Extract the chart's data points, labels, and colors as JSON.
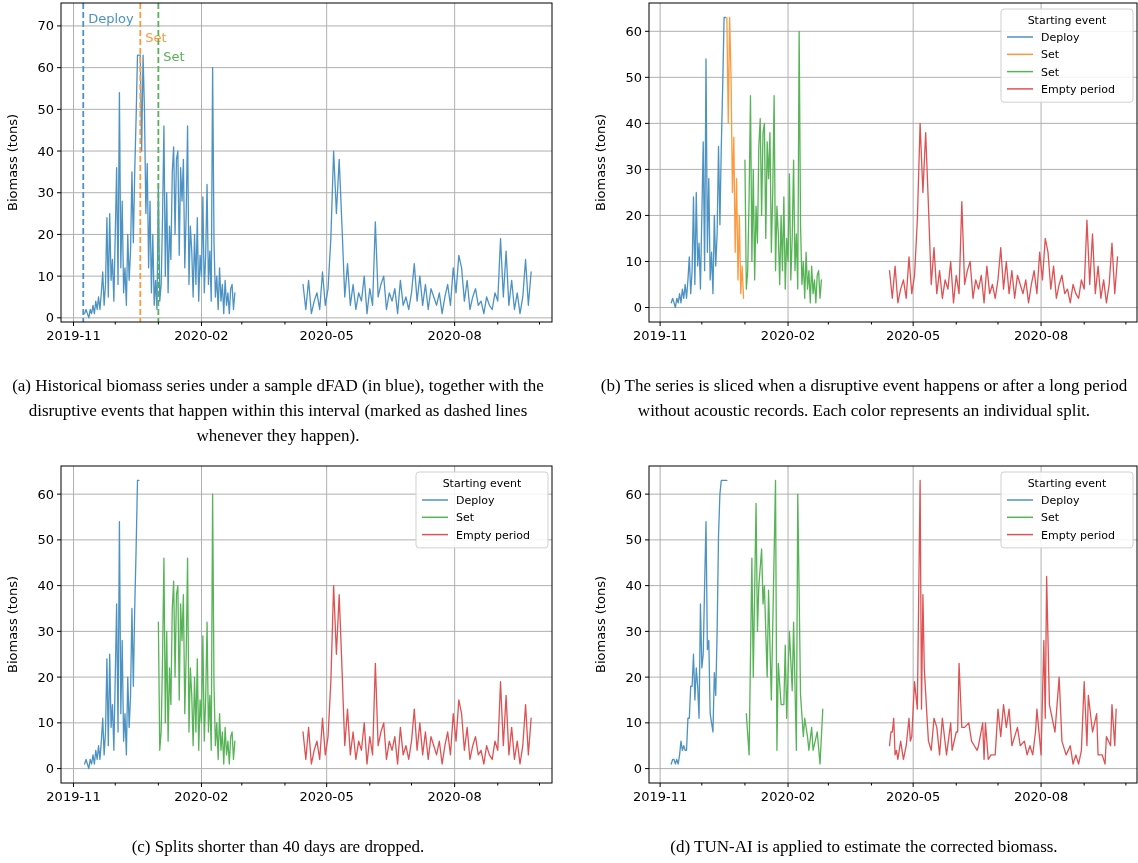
{
  "chart_data": [
    {
      "type": "line",
      "ylabel": "Biomass (tons)",
      "xlim": [
        "2019-10-23",
        "2020-10-10"
      ],
      "ylim": [
        -1,
        75.5
      ],
      "xticks": [
        "2019-11",
        {
          "value": "2019-12",
          "label": null
        },
        {
          "value": "2020-01",
          "label": null
        },
        "2020-02",
        {
          "value": "2020-03",
          "label": null
        },
        {
          "value": "2020-04",
          "label": null
        },
        "2020-05",
        {
          "value": "2020-06",
          "label": null
        },
        {
          "value": "2020-07",
          "label": null
        },
        "2020-08",
        {
          "value": "2020-09",
          "label": null
        },
        {
          "value": "2020-10",
          "label": null
        }
      ],
      "yticks": [
        0,
        10,
        20,
        30,
        40,
        50,
        60,
        70
      ],
      "grid": true,
      "x": [
        "2019-11-09",
        "2019-11-10",
        "2019-11-11",
        "2019-11-12",
        "2019-11-13",
        "2019-11-14",
        "2019-11-15",
        "2019-11-16",
        "2019-11-17",
        "2019-11-18",
        "2019-11-19",
        "2019-11-20",
        "2019-11-21",
        "2019-11-22",
        "2019-11-23",
        "2019-11-24",
        "2019-11-25",
        "2019-11-26",
        "2019-11-27",
        "2019-11-28",
        "2019-11-29",
        "2019-11-30",
        "2019-12-01",
        "2019-12-02",
        "2019-12-03",
        "2019-12-04",
        "2019-12-05",
        "2019-12-06",
        "2019-12-07",
        "2019-12-08",
        "2019-12-09",
        "2019-12-10",
        "2019-12-11",
        "2019-12-12",
        "2019-12-13",
        "2019-12-14",
        "2019-12-15",
        "2019-12-16",
        "2019-12-17",
        "2019-12-18",
        "2019-12-19",
        "2019-12-20",
        "2019-12-21",
        "2019-12-22",
        "2019-12-23",
        "2019-12-24",
        "2019-12-25",
        "2019-12-26",
        "2019-12-27",
        "2019-12-28",
        "2019-12-29",
        "2019-12-30",
        "2019-12-31",
        "2020-01-01",
        "2020-01-02",
        "2020-01-03",
        "2020-01-04",
        "2020-01-05",
        "2020-01-06",
        "2020-01-07",
        "2020-01-08",
        "2020-01-09",
        "2020-01-10",
        "2020-01-11",
        "2020-01-12",
        "2020-01-13",
        "2020-01-14",
        "2020-01-15",
        "2020-01-16",
        "2020-01-17",
        "2020-01-18",
        "2020-01-19",
        "2020-01-20",
        "2020-01-21",
        "2020-01-22",
        "2020-01-23",
        "2020-01-24",
        "2020-01-25",
        "2020-01-26",
        "2020-01-27",
        "2020-01-28",
        "2020-01-29",
        "2020-01-30",
        "2020-01-31",
        "2020-02-01",
        "2020-02-02",
        "2020-02-03",
        "2020-02-04",
        "2020-02-05",
        "2020-02-06",
        "2020-02-07",
        "2020-02-08",
        "2020-02-09",
        "2020-02-10",
        "2020-02-11",
        "2020-02-12",
        "2020-02-13",
        "2020-02-14",
        "2020-02-15",
        "2020-02-16",
        "2020-02-17",
        "2020-02-18",
        "2020-02-19",
        "2020-02-20",
        "2020-02-21",
        "2020-02-22",
        "2020-02-23",
        "2020-02-24",
        "2020-02-25",
        "2020-03-20",
        "2020-04-14",
        "2020-04-16",
        "2020-04-18",
        "2020-04-20",
        "2020-04-22",
        "2020-04-24",
        "2020-04-26",
        "2020-04-28",
        "2020-04-30",
        "2020-05-02",
        "2020-05-04",
        "2020-05-06",
        "2020-05-08",
        "2020-05-10",
        "2020-05-12",
        "2020-05-14",
        "2020-05-16",
        "2020-05-18",
        "2020-05-20",
        "2020-05-22",
        "2020-05-24",
        "2020-05-26",
        "2020-05-28",
        "2020-05-30",
        "2020-06-01",
        "2020-06-03",
        "2020-06-05",
        "2020-06-07",
        "2020-06-09",
        "2020-06-11",
        "2020-06-13",
        "2020-06-15",
        "2020-06-17",
        "2020-06-19",
        "2020-06-21",
        "2020-06-23",
        "2020-06-25",
        "2020-06-27",
        "2020-06-29",
        "2020-07-01",
        "2020-07-03",
        "2020-07-05",
        "2020-07-07",
        "2020-07-09",
        "2020-07-11",
        "2020-07-13",
        "2020-07-15",
        "2020-07-17",
        "2020-07-19",
        "2020-07-21",
        "2020-07-23",
        "2020-07-25",
        "2020-07-27",
        "2020-07-29",
        "2020-07-31",
        "2020-08-02",
        "2020-08-04",
        "2020-08-06",
        "2020-08-08",
        "2020-08-10",
        "2020-08-12",
        "2020-08-14",
        "2020-08-16",
        "2020-08-18",
        "2020-08-20",
        "2020-08-22",
        "2020-08-24",
        "2020-08-26",
        "2020-08-28",
        "2020-08-30",
        "2020-09-01",
        "2020-09-03",
        "2020-09-05",
        "2020-09-07",
        "2020-09-09",
        "2020-09-11",
        "2020-09-13",
        "2020-09-15",
        "2020-09-17",
        "2020-09-19",
        "2020-09-21",
        "2020-09-23",
        "2020-09-25"
      ],
      "series": [
        {
          "color": "#4c92c3",
          "values": [
            1,
            2,
            1,
            0,
            2,
            1,
            3,
            1,
            4,
            2,
            5,
            2,
            6,
            11,
            3,
            8,
            24,
            5,
            25,
            9,
            14,
            4,
            20,
            36,
            8,
            54,
            12,
            28,
            6,
            12,
            3,
            20,
            9,
            16,
            35,
            18,
            35,
            48,
            63,
            63,
            63,
            40,
            63,
            50,
            25,
            37,
            12,
            28,
            6,
            20,
            3,
            9,
            2,
            32,
            4,
            8,
            24,
            46,
            10,
            30,
            6,
            22,
            14,
            35,
            41,
            20,
            38,
            40,
            15,
            36,
            28,
            38,
            12,
            25,
            46,
            8,
            22,
            16,
            5,
            20,
            8,
            24,
            4,
            15,
            10,
            29,
            6,
            15,
            32,
            8,
            16,
            4,
            60,
            18,
            5,
            10,
            2,
            12,
            4,
            8,
            1,
            9,
            3,
            6,
            1,
            7,
            8,
            2,
            6,
            null,
            8,
            2,
            9,
            1,
            4,
            6,
            2,
            11,
            3,
            7,
            19,
            40,
            25,
            38,
            22,
            5,
            13,
            3,
            8,
            2,
            6,
            4,
            10,
            1,
            7,
            3,
            23,
            5,
            8,
            10,
            2,
            6,
            4,
            7,
            1,
            9,
            3,
            5,
            2,
            6,
            13,
            4,
            10,
            3,
            8,
            2,
            7,
            5,
            3,
            6,
            1,
            5,
            8,
            3,
            12,
            6,
            15,
            12,
            4,
            9,
            2,
            5,
            7,
            3,
            4,
            1,
            5,
            3,
            2,
            6,
            4,
            19,
            5,
            16,
            3,
            9,
            2,
            6,
            1,
            5,
            14,
            3,
            11
          ]
        }
      ],
      "ref_lines": [
        {
          "axis": "x",
          "value": "2019-11-08",
          "label": "Deploy",
          "color": "#4c92c3",
          "line_style": "dashed"
        },
        {
          "axis": "x",
          "value": "2019-12-19",
          "label": "Set",
          "color": "#ff993e",
          "line_style": "dashed"
        },
        {
          "axis": "x",
          "value": "2020-01-01",
          "label": "Set",
          "color": "#56b356",
          "line_style": "dashed"
        }
      ],
      "annotations": [
        "(a) Historical biomass series under a sample dFAD (in blue), together with the disruptive events that happen within this interval (marked as dashed lines whenever they happen)."
      ]
    },
    {
      "type": "line",
      "ylabel": "Biomass (tons)",
      "xlim": [
        "2019-10-24",
        "2020-10-09"
      ],
      "ylim": [
        -3.15,
        66.15
      ],
      "xticks": [
        "2019-11",
        {
          "value": "2019-12",
          "label": null
        },
        {
          "value": "2020-01",
          "label": null
        },
        "2020-02",
        {
          "value": "2020-03",
          "label": null
        },
        {
          "value": "2020-04",
          "label": null
        },
        "2020-05",
        {
          "value": "2020-06",
          "label": null
        },
        {
          "value": "2020-07",
          "label": null
        },
        "2020-08",
        {
          "value": "2020-09",
          "label": null
        },
        {
          "value": "2020-10",
          "label": null
        }
      ],
      "yticks": [
        0,
        10,
        20,
        30,
        40,
        50,
        60
      ],
      "grid": true,
      "legend": "top right",
      "legend_title": "Starting event",
      "series": [
        {
          "name": "Deploy",
          "color": "#4c92c3",
          "x": [
            "2019-11-09",
            "2019-11-10",
            "2019-11-11",
            "2019-11-12",
            "2019-11-13",
            "2019-11-14",
            "2019-11-15",
            "2019-11-16",
            "2019-11-17",
            "2019-11-18",
            "2019-11-19",
            "2019-11-20",
            "2019-11-21",
            "2019-11-22",
            "2019-11-23",
            "2019-11-24",
            "2019-11-25",
            "2019-11-26",
            "2019-11-27",
            "2019-11-28",
            "2019-11-29",
            "2019-11-30",
            "2019-12-01",
            "2019-12-02",
            "2019-12-03",
            "2019-12-04",
            "2019-12-05",
            "2019-12-06",
            "2019-12-07",
            "2019-12-08",
            "2019-12-09",
            "2019-12-10",
            "2019-12-11",
            "2019-12-12",
            "2019-12-13",
            "2019-12-14",
            "2019-12-15",
            "2019-12-16",
            "2019-12-17",
            "2019-12-18"
          ],
          "values": [
            1,
            2,
            1,
            0,
            2,
            1,
            3,
            1,
            4,
            2,
            5,
            2,
            6,
            11,
            3,
            8,
            24,
            5,
            25,
            9,
            14,
            4,
            20,
            36,
            8,
            54,
            12,
            28,
            6,
            12,
            3,
            20,
            9,
            16,
            35,
            18,
            35,
            48,
            63,
            63
          ]
        },
        {
          "name": "Set",
          "color": "#ff993e",
          "x": [
            "2019-12-19",
            "2019-12-20",
            "2019-12-21",
            "2019-12-22",
            "2019-12-23",
            "2019-12-24",
            "2019-12-25",
            "2019-12-26",
            "2019-12-27",
            "2019-12-28",
            "2019-12-29",
            "2019-12-30",
            "2019-12-31"
          ],
          "values": [
            63,
            40,
            63,
            50,
            25,
            37,
            12,
            28,
            6,
            20,
            3,
            9,
            2
          ]
        },
        {
          "name": "Set",
          "color": "#56b356",
          "x": [
            "2020-01-01",
            "2020-01-02",
            "2020-01-03",
            "2020-01-04",
            "2020-01-05",
            "2020-01-06",
            "2020-01-07",
            "2020-01-08",
            "2020-01-09",
            "2020-01-10",
            "2020-01-11",
            "2020-01-12",
            "2020-01-13",
            "2020-01-14",
            "2020-01-15",
            "2020-01-16",
            "2020-01-17",
            "2020-01-18",
            "2020-01-19",
            "2020-01-20",
            "2020-01-21",
            "2020-01-22",
            "2020-01-23",
            "2020-01-24",
            "2020-01-25",
            "2020-01-26",
            "2020-01-27",
            "2020-01-28",
            "2020-01-29",
            "2020-01-30",
            "2020-01-31",
            "2020-02-01",
            "2020-02-02",
            "2020-02-03",
            "2020-02-04",
            "2020-02-05",
            "2020-02-06",
            "2020-02-07",
            "2020-02-08",
            "2020-02-09",
            "2020-02-10",
            "2020-02-11",
            "2020-02-12",
            "2020-02-13",
            "2020-02-14",
            "2020-02-15",
            "2020-02-16",
            "2020-02-17",
            "2020-02-18",
            "2020-02-19",
            "2020-02-20",
            "2020-02-21",
            "2020-02-22",
            "2020-02-23",
            "2020-02-24",
            "2020-02-25"
          ],
          "values": [
            32,
            4,
            8,
            24,
            46,
            10,
            30,
            6,
            22,
            14,
            35,
            41,
            20,
            38,
            40,
            15,
            36,
            28,
            38,
            12,
            25,
            46,
            8,
            22,
            16,
            5,
            20,
            8,
            24,
            4,
            15,
            10,
            29,
            6,
            15,
            32,
            8,
            16,
            4,
            60,
            18,
            5,
            10,
            2,
            12,
            4,
            8,
            1,
            9,
            3,
            6,
            1,
            7,
            8,
            2,
            6
          ]
        },
        {
          "name": "Empty period",
          "color": "#de5253",
          "x": [
            "2020-04-14",
            "2020-04-16",
            "2020-04-18",
            "2020-04-20",
            "2020-04-22",
            "2020-04-24",
            "2020-04-26",
            "2020-04-28",
            "2020-04-30",
            "2020-05-02",
            "2020-05-04",
            "2020-05-06",
            "2020-05-08",
            "2020-05-10",
            "2020-05-12",
            "2020-05-14",
            "2020-05-16",
            "2020-05-18",
            "2020-05-20",
            "2020-05-22",
            "2020-05-24",
            "2020-05-26",
            "2020-05-28",
            "2020-05-30",
            "2020-06-01",
            "2020-06-03",
            "2020-06-05",
            "2020-06-07",
            "2020-06-09",
            "2020-06-11",
            "2020-06-13",
            "2020-06-15",
            "2020-06-17",
            "2020-06-19",
            "2020-06-21",
            "2020-06-23",
            "2020-06-25",
            "2020-06-27",
            "2020-06-29",
            "2020-07-01",
            "2020-07-03",
            "2020-07-05",
            "2020-07-07",
            "2020-07-09",
            "2020-07-11",
            "2020-07-13",
            "2020-07-15",
            "2020-07-17",
            "2020-07-19",
            "2020-07-21",
            "2020-07-23",
            "2020-07-25",
            "2020-07-27",
            "2020-07-29",
            "2020-07-31",
            "2020-08-02",
            "2020-08-04",
            "2020-08-06",
            "2020-08-08",
            "2020-08-10",
            "2020-08-12",
            "2020-08-14",
            "2020-08-16",
            "2020-08-18",
            "2020-08-20",
            "2020-08-22",
            "2020-08-24",
            "2020-08-26",
            "2020-08-28",
            "2020-08-30",
            "2020-09-01",
            "2020-09-03",
            "2020-09-05",
            "2020-09-07",
            "2020-09-09",
            "2020-09-11",
            "2020-09-13",
            "2020-09-15",
            "2020-09-17",
            "2020-09-19",
            "2020-09-21",
            "2020-09-23",
            "2020-09-25"
          ],
          "values": [
            8,
            2,
            9,
            1,
            4,
            6,
            2,
            11,
            3,
            7,
            19,
            40,
            25,
            38,
            22,
            5,
            13,
            3,
            8,
            2,
            6,
            4,
            10,
            1,
            7,
            3,
            23,
            5,
            8,
            10,
            2,
            6,
            4,
            7,
            1,
            9,
            3,
            5,
            2,
            6,
            13,
            4,
            10,
            3,
            8,
            2,
            7,
            5,
            3,
            6,
            1,
            5,
            8,
            3,
            12,
            6,
            15,
            12,
            4,
            9,
            2,
            5,
            7,
            3,
            4,
            1,
            5,
            3,
            2,
            6,
            4,
            19,
            5,
            16,
            3,
            9,
            2,
            6,
            1,
            5,
            14,
            3,
            11
          ]
        }
      ],
      "annotations": [
        "(b) The series is sliced when a disruptive event happens or after a long period without acoustic records. Each color represents an individual split."
      ]
    },
    {
      "type": "line",
      "ylabel": "Biomass (tons)",
      "xlim": [
        "2019-10-23",
        "2020-10-10"
      ],
      "ylim": [
        -3.15,
        66.15
      ],
      "xticks": [
        "2019-11",
        {
          "value": "2019-12",
          "label": null
        },
        {
          "value": "2020-01",
          "label": null
        },
        "2020-02",
        {
          "value": "2020-03",
          "label": null
        },
        {
          "value": "2020-04",
          "label": null
        },
        "2020-05",
        {
          "value": "2020-06",
          "label": null
        },
        {
          "value": "2020-07",
          "label": null
        },
        "2020-08",
        {
          "value": "2020-09",
          "label": null
        },
        {
          "value": "2020-10",
          "label": null
        }
      ],
      "yticks": [
        0,
        10,
        20,
        30,
        40,
        50,
        60
      ],
      "grid": true,
      "legend": "top right",
      "legend_title": "Starting event",
      "series": [
        {
          "name": "Deploy",
          "color": "#4c92c3",
          "x": [
            "2019-11-09",
            "2019-11-10",
            "2019-11-11",
            "2019-11-12",
            "2019-11-13",
            "2019-11-14",
            "2019-11-15",
            "2019-11-16",
            "2019-11-17",
            "2019-11-18",
            "2019-11-19",
            "2019-11-20",
            "2019-11-21",
            "2019-11-22",
            "2019-11-23",
            "2019-11-24",
            "2019-11-25",
            "2019-11-26",
            "2019-11-27",
            "2019-11-28",
            "2019-11-29",
            "2019-11-30",
            "2019-12-01",
            "2019-12-02",
            "2019-12-03",
            "2019-12-04",
            "2019-12-05",
            "2019-12-06",
            "2019-12-07",
            "2019-12-08",
            "2019-12-09",
            "2019-12-10",
            "2019-12-11",
            "2019-12-12",
            "2019-12-13",
            "2019-12-14",
            "2019-12-15",
            "2019-12-16",
            "2019-12-17",
            "2019-12-18"
          ],
          "values": [
            1,
            2,
            1,
            0,
            2,
            1,
            3,
            1,
            4,
            2,
            5,
            2,
            6,
            11,
            3,
            8,
            24,
            5,
            25,
            9,
            14,
            4,
            20,
            36,
            8,
            54,
            12,
            28,
            6,
            12,
            3,
            20,
            9,
            16,
            35,
            18,
            35,
            48,
            63,
            63
          ]
        },
        {
          "name": "Set",
          "color": "#56b356",
          "x": [
            "2020-01-01",
            "2020-01-02",
            "2020-01-03",
            "2020-01-04",
            "2020-01-05",
            "2020-01-06",
            "2020-01-07",
            "2020-01-08",
            "2020-01-09",
            "2020-01-10",
            "2020-01-11",
            "2020-01-12",
            "2020-01-13",
            "2020-01-14",
            "2020-01-15",
            "2020-01-16",
            "2020-01-17",
            "2020-01-18",
            "2020-01-19",
            "2020-01-20",
            "2020-01-21",
            "2020-01-22",
            "2020-01-23",
            "2020-01-24",
            "2020-01-25",
            "2020-01-26",
            "2020-01-27",
            "2020-01-28",
            "2020-01-29",
            "2020-01-30",
            "2020-01-31",
            "2020-02-01",
            "2020-02-02",
            "2020-02-03",
            "2020-02-04",
            "2020-02-05",
            "2020-02-06",
            "2020-02-07",
            "2020-02-08",
            "2020-02-09",
            "2020-02-10",
            "2020-02-11",
            "2020-02-12",
            "2020-02-13",
            "2020-02-14",
            "2020-02-15",
            "2020-02-16",
            "2020-02-17",
            "2020-02-18",
            "2020-02-19",
            "2020-02-20",
            "2020-02-21",
            "2020-02-22",
            "2020-02-23",
            "2020-02-24",
            "2020-02-25"
          ],
          "values": [
            32,
            4,
            8,
            24,
            46,
            10,
            30,
            6,
            22,
            14,
            35,
            41,
            20,
            38,
            40,
            15,
            36,
            28,
            38,
            12,
            25,
            46,
            8,
            22,
            16,
            5,
            20,
            8,
            24,
            4,
            15,
            10,
            29,
            6,
            15,
            32,
            8,
            16,
            4,
            60,
            18,
            5,
            10,
            2,
            12,
            4,
            8,
            1,
            9,
            3,
            6,
            1,
            7,
            8,
            2,
            6
          ]
        },
        {
          "name": "Empty period",
          "color": "#de5253",
          "x": [
            "2020-04-14",
            "2020-04-16",
            "2020-04-18",
            "2020-04-20",
            "2020-04-22",
            "2020-04-24",
            "2020-04-26",
            "2020-04-28",
            "2020-04-30",
            "2020-05-02",
            "2020-05-04",
            "2020-05-06",
            "2020-05-08",
            "2020-05-10",
            "2020-05-12",
            "2020-05-14",
            "2020-05-16",
            "2020-05-18",
            "2020-05-20",
            "2020-05-22",
            "2020-05-24",
            "2020-05-26",
            "2020-05-28",
            "2020-05-30",
            "2020-06-01",
            "2020-06-03",
            "2020-06-05",
            "2020-06-07",
            "2020-06-09",
            "2020-06-11",
            "2020-06-13",
            "2020-06-15",
            "2020-06-17",
            "2020-06-19",
            "2020-06-21",
            "2020-06-23",
            "2020-06-25",
            "2020-06-27",
            "2020-06-29",
            "2020-07-01",
            "2020-07-03",
            "2020-07-05",
            "2020-07-07",
            "2020-07-09",
            "2020-07-11",
            "2020-07-13",
            "2020-07-15",
            "2020-07-17",
            "2020-07-19",
            "2020-07-21",
            "2020-07-23",
            "2020-07-25",
            "2020-07-27",
            "2020-07-29",
            "2020-07-31",
            "2020-08-02",
            "2020-08-04",
            "2020-08-06",
            "2020-08-08",
            "2020-08-10",
            "2020-08-12",
            "2020-08-14",
            "2020-08-16",
            "2020-08-18",
            "2020-08-20",
            "2020-08-22",
            "2020-08-24",
            "2020-08-26",
            "2020-08-28",
            "2020-08-30",
            "2020-09-01",
            "2020-09-03",
            "2020-09-05",
            "2020-09-07",
            "2020-09-09",
            "2020-09-11",
            "2020-09-13",
            "2020-09-15",
            "2020-09-17",
            "2020-09-19",
            "2020-09-21",
            "2020-09-23",
            "2020-09-25"
          ],
          "values": [
            8,
            2,
            9,
            1,
            4,
            6,
            2,
            11,
            3,
            7,
            19,
            40,
            25,
            38,
            22,
            5,
            13,
            3,
            8,
            2,
            6,
            4,
            10,
            1,
            7,
            3,
            23,
            5,
            8,
            10,
            2,
            6,
            4,
            7,
            1,
            9,
            3,
            5,
            2,
            6,
            13,
            4,
            10,
            3,
            8,
            2,
            7,
            5,
            3,
            6,
            1,
            5,
            8,
            3,
            12,
            6,
            15,
            12,
            4,
            9,
            2,
            5,
            7,
            3,
            4,
            1,
            5,
            3,
            2,
            6,
            4,
            19,
            5,
            16,
            3,
            9,
            2,
            6,
            1,
            5,
            14,
            3,
            11
          ]
        }
      ],
      "annotations": [
        "(c) Splits shorter than 40 days are dropped."
      ]
    },
    {
      "type": "line",
      "ylabel": "Biomass (tons)",
      "xlim": [
        "2019-10-24",
        "2020-10-09"
      ],
      "ylim": [
        -3.15,
        66.15
      ],
      "xticks": [
        "2019-11",
        {
          "value": "2019-12",
          "label": null
        },
        {
          "value": "2020-01",
          "label": null
        },
        "2020-02",
        {
          "value": "2020-03",
          "label": null
        },
        {
          "value": "2020-04",
          "label": null
        },
        "2020-05",
        {
          "value": "2020-06",
          "label": null
        },
        {
          "value": "2020-07",
          "label": null
        },
        "2020-08",
        {
          "value": "2020-09",
          "label": null
        },
        {
          "value": "2020-10",
          "label": null
        }
      ],
      "yticks": [
        0,
        10,
        20,
        30,
        40,
        50,
        60
      ],
      "grid": true,
      "legend": "top right",
      "legend_title": "Starting event",
      "series": [
        {
          "name": "Deploy",
          "color": "#4c92c3",
          "x": [
            "2019-11-09",
            "2019-11-10",
            "2019-11-11",
            "2019-11-12",
            "2019-11-13",
            "2019-11-14",
            "2019-11-15",
            "2019-11-16",
            "2019-11-17",
            "2019-11-18",
            "2019-11-19",
            "2019-11-20",
            "2019-11-21",
            "2019-11-22",
            "2019-11-23",
            "2019-11-24",
            "2019-11-25",
            "2019-11-26",
            "2019-11-27",
            "2019-11-28",
            "2019-11-29",
            "2019-11-30",
            "2019-12-01",
            "2019-12-02",
            "2019-12-03",
            "2019-12-04",
            "2019-12-05",
            "2019-12-06",
            "2019-12-07",
            "2019-12-08",
            "2019-12-09",
            "2019-12-10",
            "2019-12-11",
            "2019-12-12",
            "2019-12-13",
            "2019-12-14",
            "2019-12-15",
            "2019-12-16",
            "2019-12-17",
            "2019-12-18",
            "2019-12-19"
          ],
          "values": [
            1,
            2,
            2,
            1,
            2,
            1,
            3,
            6,
            4,
            5,
            4,
            4,
            11,
            11,
            18,
            18,
            25,
            15,
            22,
            18,
            11,
            36,
            22,
            25,
            40,
            54,
            26,
            28,
            12,
            10,
            8,
            21,
            16,
            30,
            51,
            60,
            63,
            63,
            63,
            63,
            63
          ]
        },
        {
          "name": "Set",
          "color": "#56b356",
          "x": [
            "2020-01-02",
            "2020-01-04",
            "2020-01-06",
            "2020-01-07",
            "2020-01-09",
            "2020-01-10",
            "2020-01-11",
            "2020-01-13",
            "2020-01-14",
            "2020-01-15",
            "2020-01-17",
            "2020-01-18",
            "2020-01-20",
            "2020-01-23",
            "2020-01-24",
            "2020-01-25",
            "2020-01-27",
            "2020-01-29",
            "2020-01-30",
            "2020-01-31",
            "2020-02-02",
            "2020-02-04",
            "2020-02-05",
            "2020-02-07",
            "2020-02-08",
            "2020-02-10",
            "2020-02-12",
            "2020-02-13",
            "2020-02-15",
            "2020-02-16",
            "2020-02-18",
            "2020-02-19",
            "2020-02-22",
            "2020-02-24",
            "2020-02-26"
          ],
          "values": [
            12,
            3,
            46,
            20,
            58,
            30,
            40,
            48,
            36,
            40,
            20,
            39,
            15,
            63,
            4,
            23,
            14,
            14,
            27,
            11,
            30,
            17,
            32,
            4,
            60,
            16,
            7,
            11,
            7,
            4,
            9,
            4,
            8,
            1,
            13
          ]
        },
        {
          "name": "Empty period",
          "color": "#de5253",
          "x": [
            "2020-04-14",
            "2020-04-15",
            "2020-04-16",
            "2020-04-17",
            "2020-04-18",
            "2020-04-19",
            "2020-04-20",
            "2020-04-22",
            "2020-04-24",
            "2020-04-26",
            "2020-04-28",
            "2020-04-29",
            "2020-04-30",
            "2020-05-02",
            "2020-05-04",
            "2020-05-06",
            "2020-05-07",
            "2020-05-08",
            "2020-05-09",
            "2020-05-11",
            "2020-05-12",
            "2020-05-14",
            "2020-05-16",
            "2020-05-18",
            "2020-05-20",
            "2020-05-22",
            "2020-05-25",
            "2020-05-28",
            "2020-05-29",
            "2020-06-01",
            "2020-06-02",
            "2020-06-03",
            "2020-06-05",
            "2020-06-07",
            "2020-06-10",
            "2020-06-12",
            "2020-06-14",
            "2020-06-16",
            "2020-06-17",
            "2020-06-20",
            "2020-06-21",
            "2020-06-22",
            "2020-06-24",
            "2020-06-26",
            "2020-06-29",
            "2020-07-01",
            "2020-07-03",
            "2020-07-05",
            "2020-07-07",
            "2020-07-09",
            "2020-07-11",
            "2020-07-13",
            "2020-07-15",
            "2020-07-17",
            "2020-07-20",
            "2020-07-22",
            "2020-07-24",
            "2020-07-26",
            "2020-07-28",
            "2020-07-29",
            "2020-08-01",
            "2020-08-03",
            "2020-08-04",
            "2020-08-05",
            "2020-08-07",
            "2020-08-09",
            "2020-08-11",
            "2020-08-14",
            "2020-08-16",
            "2020-08-19",
            "2020-08-22",
            "2020-08-24",
            "2020-08-26",
            "2020-08-28",
            "2020-08-30",
            "2020-09-01",
            "2020-09-03",
            "2020-09-04",
            "2020-09-07",
            "2020-09-10",
            "2020-09-11",
            "2020-09-14",
            "2020-09-16",
            "2020-09-17",
            "2020-09-20",
            "2020-09-21",
            "2020-09-23",
            "2020-09-24"
          ],
          "values": [
            5,
            8,
            8,
            11,
            3,
            4,
            2,
            6,
            2,
            5,
            11,
            6,
            7,
            19,
            13,
            63,
            13,
            38,
            22,
            11,
            6,
            4,
            11,
            9,
            3,
            11,
            3,
            10,
            4,
            8,
            8,
            23,
            9,
            9,
            10,
            6,
            5,
            4,
            5,
            10,
            2,
            10,
            2,
            3,
            3,
            13,
            7,
            14,
            9,
            13,
            5,
            7,
            9,
            5,
            6,
            3,
            5,
            3,
            8,
            13,
            3,
            28,
            11,
            42,
            14,
            11,
            8,
            20,
            6,
            3,
            5,
            1,
            3,
            1,
            4,
            19,
            5,
            16,
            8,
            12,
            3,
            3,
            1,
            7,
            5,
            14,
            5,
            13
          ]
        }
      ],
      "annotations": [
        "(d) TUN-AI is applied to estimate the corrected biomass."
      ]
    }
  ]
}
